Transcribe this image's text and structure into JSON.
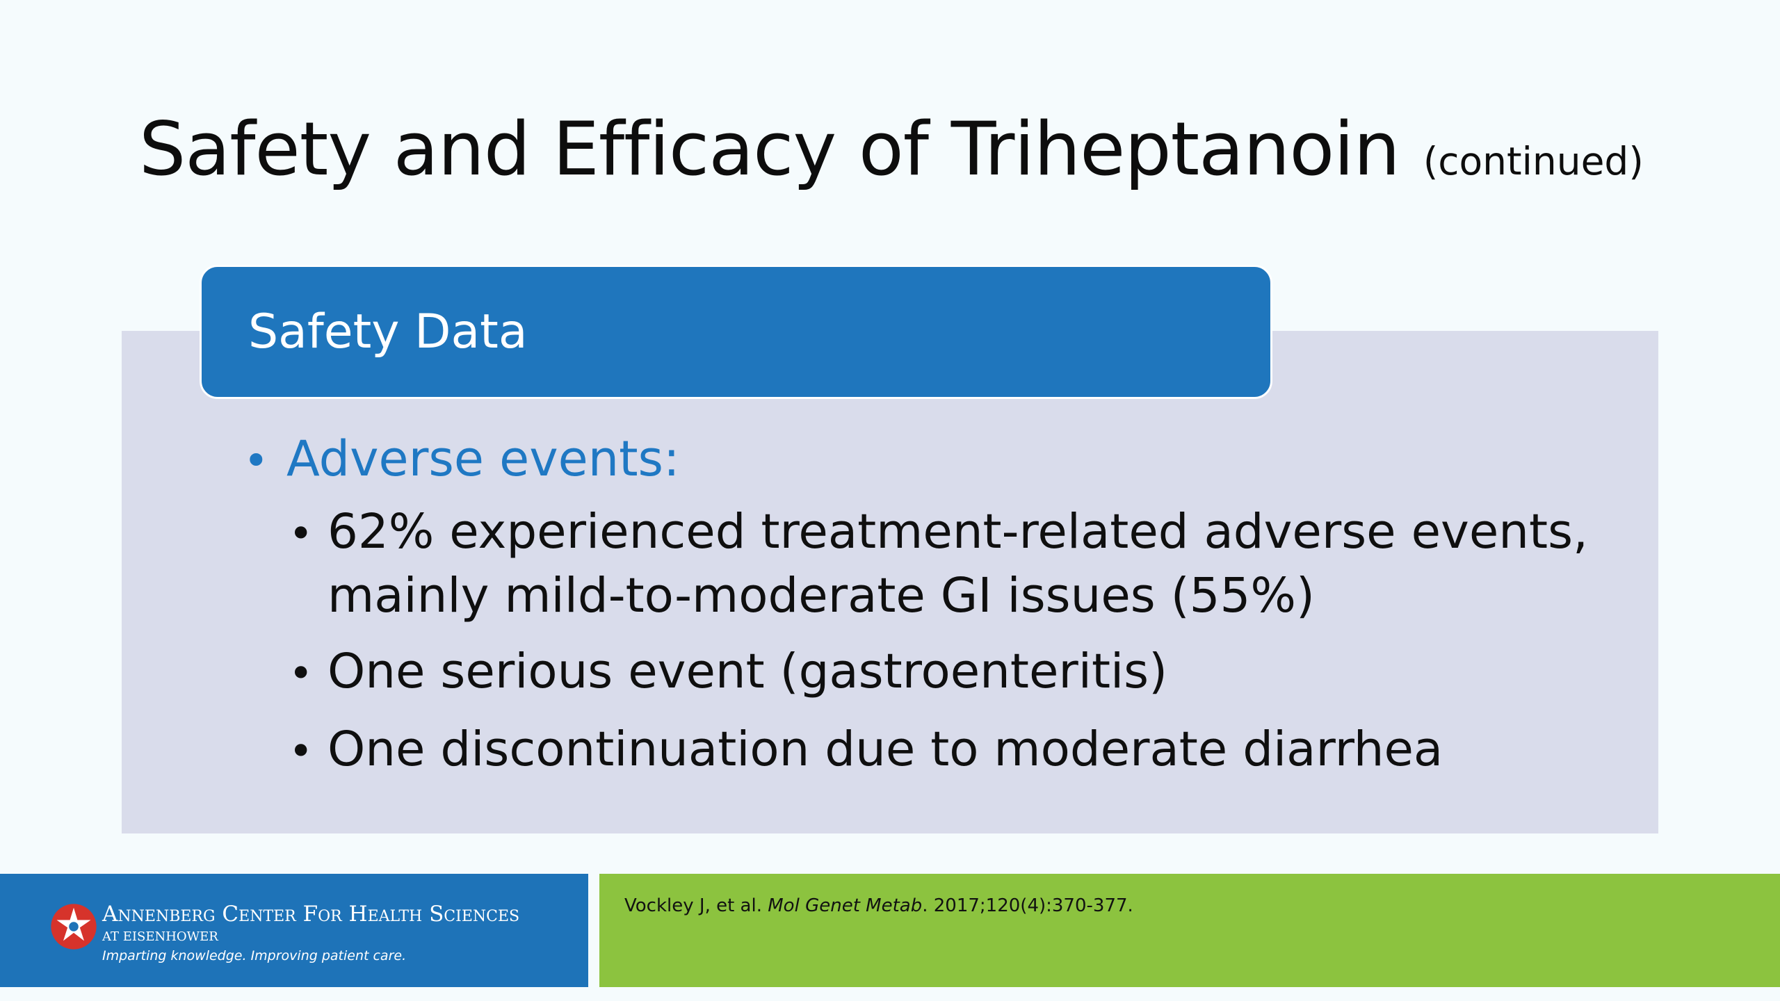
{
  "slide": {
    "title": "Safety and Efficacy of Triheptanoin",
    "title_suffix": "(continued)",
    "section_title": "Safety Data",
    "bullet_level1": "Adverse events:",
    "bullets_level2": [
      "62% experienced treatment-related adverse events, mainly mild-to-moderate GI issues (55%)",
      "One serious event (gastroenteritis)",
      "One discontinuation due to moderate diarrhea"
    ]
  },
  "footer": {
    "logo_name": "Annenberg Center For Health Sciences",
    "logo_sub": "AT EISENHOWER",
    "logo_tagline": "Imparting knowledge. Improving patient care.",
    "citation_authors": "Vockley J, et al.",
    "citation_journal": "Mol Genet Metab",
    "citation_details": ". 2017;120(4):370-377."
  },
  "colors": {
    "header_box": "#1f76bd",
    "content_bg": "#d9dceb",
    "footer_blue": "#1e73b8",
    "footer_green": "#8cc33f",
    "bullet_blue": "#1f78c3"
  }
}
